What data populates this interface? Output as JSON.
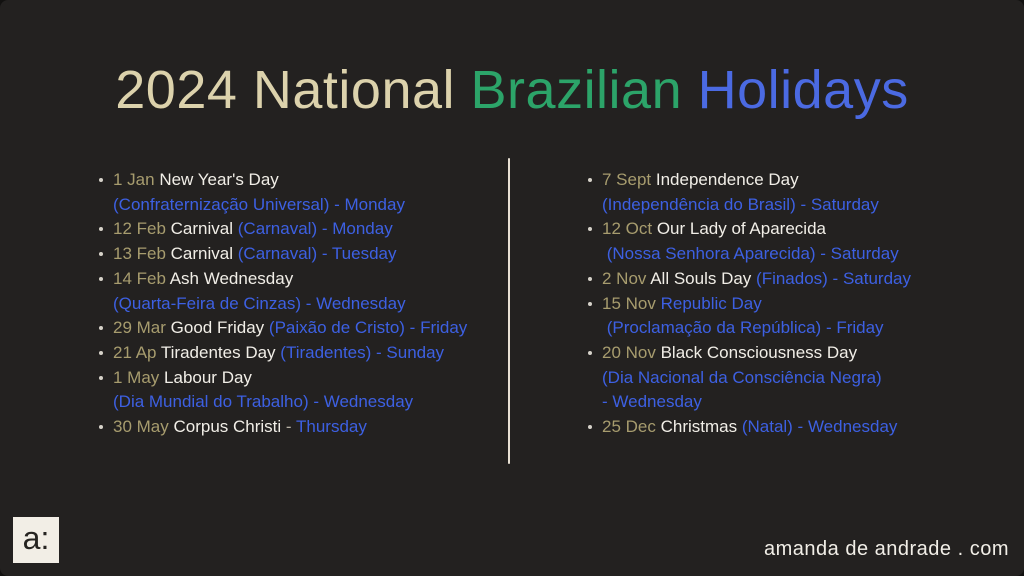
{
  "title": {
    "parts": [
      {
        "text": "2024 National ",
        "color": "#dcd2ac"
      },
      {
        "text": "Brazilian ",
        "color": "#2ca469"
      },
      {
        "text": "Holidays",
        "color": "#4b6ae2"
      }
    ]
  },
  "holidays": {
    "left": [
      {
        "lines": [
          [
            {
              "t": "1 Jan ",
              "c": "date"
            },
            {
              "t": "New Year's Day",
              "c": "name"
            }
          ],
          [
            {
              "t": "(Confraternização Universal) - Monday",
              "c": "pt"
            }
          ]
        ]
      },
      {
        "lines": [
          [
            {
              "t": "12 Feb ",
              "c": "date"
            },
            {
              "t": "Carnival ",
              "c": "name"
            },
            {
              "t": "(Carnaval) - Monday",
              "c": "pt"
            }
          ]
        ]
      },
      {
        "lines": [
          [
            {
              "t": "13 Feb ",
              "c": "date"
            },
            {
              "t": "Carnival ",
              "c": "name"
            },
            {
              "t": "(Carnaval) - Tuesday",
              "c": "pt"
            }
          ]
        ]
      },
      {
        "lines": [
          [
            {
              "t": "14 Feb ",
              "c": "date"
            },
            {
              "t": "Ash Wednesday",
              "c": "name"
            }
          ],
          [
            {
              "t": "(Quarta-Feira de Cinzas) - Wednesday",
              "c": "pt"
            }
          ]
        ]
      },
      {
        "lines": [
          [
            {
              "t": "29 Mar ",
              "c": "date"
            },
            {
              "t": "Good Friday ",
              "c": "name"
            },
            {
              "t": "(Paixão de Cristo) - Friday",
              "c": "pt"
            }
          ]
        ]
      },
      {
        "lines": [
          [
            {
              "t": "21 Ap ",
              "c": "date"
            },
            {
              "t": "Tiradentes Day ",
              "c": "name"
            },
            {
              "t": "(Tiradentes) - Sunday",
              "c": "pt"
            }
          ]
        ]
      },
      {
        "lines": [
          [
            {
              "t": "1 May ",
              "c": "date"
            },
            {
              "t": "Labour Day",
              "c": "name"
            }
          ],
          [
            {
              "t": "(Dia Mundial do Trabalho) - Wednesday",
              "c": "pt"
            }
          ]
        ]
      },
      {
        "lines": [
          [
            {
              "t": "30 May ",
              "c": "date"
            },
            {
              "t": "Corpus Christi ",
              "c": "name"
            },
            {
              "t": "- ",
              "c": "dash"
            },
            {
              "t": "Thursday",
              "c": "pt"
            }
          ]
        ]
      }
    ],
    "right": [
      {
        "lines": [
          [
            {
              "t": "7 Sept ",
              "c": "date"
            },
            {
              "t": "Independence Day",
              "c": "name"
            }
          ],
          [
            {
              "t": "(Independência do Brasil) - Saturday",
              "c": "pt"
            }
          ]
        ]
      },
      {
        "lines": [
          [
            {
              "t": "12 Oct ",
              "c": "date"
            },
            {
              "t": "Our Lady of Aparecida",
              "c": "name"
            }
          ],
          [
            {
              "t": " (Nossa Senhora Aparecida) - Saturday",
              "c": "pt"
            }
          ]
        ]
      },
      {
        "lines": [
          [
            {
              "t": "2 Nov ",
              "c": "date"
            },
            {
              "t": "All Souls Day ",
              "c": "name"
            },
            {
              "t": "(Finados) - Saturday",
              "c": "pt"
            }
          ]
        ]
      },
      {
        "lines": [
          [
            {
              "t": "15 Nov ",
              "c": "date"
            },
            {
              "t": "Republic Day",
              "c": "pt"
            }
          ],
          [
            {
              "t": " (Proclamação da República) - Friday",
              "c": "pt"
            }
          ]
        ]
      },
      {
        "lines": [
          [
            {
              "t": "20 Nov ",
              "c": "date"
            },
            {
              "t": "Black Consciousness Day",
              "c": "name"
            }
          ],
          [
            {
              "t": "(Dia Nacional da Consciência Negra)",
              "c": "pt"
            }
          ],
          [
            {
              "t": "- Wednesday",
              "c": "pt"
            }
          ]
        ]
      },
      {
        "lines": [
          [
            {
              "t": "25 Dec ",
              "c": "date"
            },
            {
              "t": "Christmas ",
              "c": "name"
            },
            {
              "t": "(Natal) - Wednesday",
              "c": "pt"
            }
          ]
        ]
      }
    ]
  },
  "footer": {
    "logo_text": "a:",
    "website": "amanda de andrade . com"
  },
  "colors": {
    "background": "#232120",
    "title_cream": "#dcd2ac",
    "title_green": "#2ca469",
    "title_blue": "#4b6ae2",
    "date_tan": "#a79c6e",
    "holiday_white": "#f1eee7",
    "portuguese_blue": "#3d60e2",
    "divider_cream": "#e9e1d4",
    "logo_background": "#f2eee6"
  }
}
